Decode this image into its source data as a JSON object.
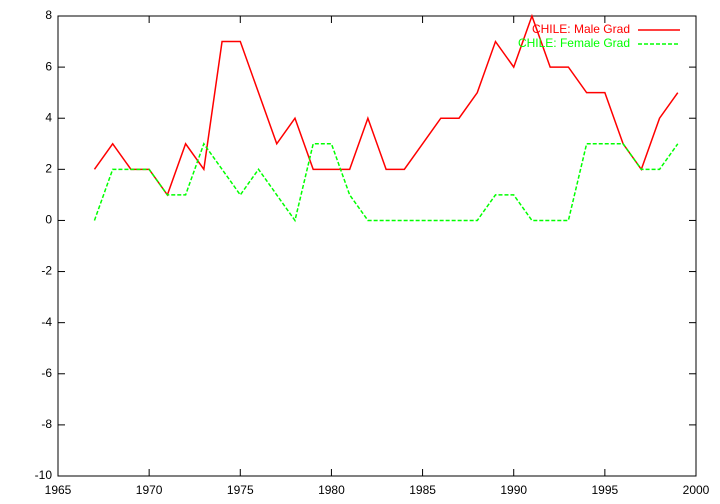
{
  "chart_data": {
    "type": "line",
    "x": [
      1967,
      1968,
      1969,
      1970,
      1971,
      1972,
      1973,
      1974,
      1975,
      1976,
      1977,
      1978,
      1979,
      1980,
      1981,
      1982,
      1983,
      1984,
      1985,
      1986,
      1987,
      1988,
      1989,
      1990,
      1991,
      1992,
      1993,
      1994,
      1995,
      1996,
      1997,
      1998,
      1999
    ],
    "series": [
      {
        "name": "CHILE: Male Grad",
        "color": "#ff0000",
        "dash": false,
        "values": [
          2,
          3,
          2,
          2,
          1,
          3,
          2,
          7,
          7,
          5,
          3,
          4,
          2,
          2,
          2,
          4,
          2,
          2,
          3,
          4,
          4,
          5,
          7,
          6,
          8,
          6,
          6,
          5,
          5,
          3,
          2,
          4,
          5
        ]
      },
      {
        "name": "CHILE: Female Grad",
        "color": "#00ff00",
        "dash": true,
        "values": [
          0,
          2,
          2,
          2,
          1,
          1,
          3,
          2,
          1,
          2,
          1,
          0,
          3,
          3,
          1,
          0,
          0,
          0,
          0,
          0,
          0,
          0,
          1,
          1,
          0,
          0,
          0,
          3,
          3,
          3,
          2,
          2,
          3
        ]
      }
    ],
    "xlim": [
      1965,
      2000
    ],
    "xticks": [
      1965,
      1970,
      1975,
      1980,
      1985,
      1990,
      1995,
      2000
    ],
    "ylim": [
      -10,
      8
    ],
    "yticks": [
      -10,
      -8,
      -6,
      -4,
      -2,
      0,
      2,
      4,
      6,
      8
    ],
    "grid": false,
    "legend": "top-right"
  }
}
